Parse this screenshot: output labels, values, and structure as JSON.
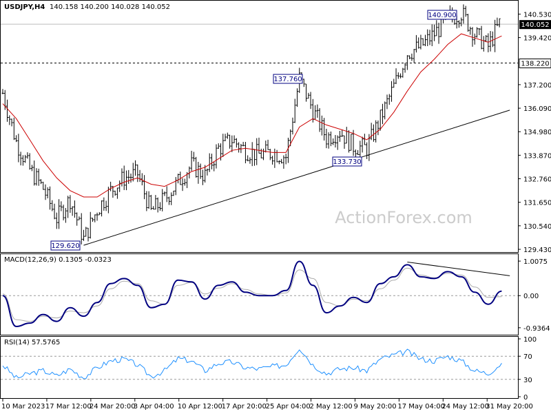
{
  "header": {
    "symbol": "USDJPY,H4",
    "ohlc": "140.158 140.200 140.028 140.052"
  },
  "watermark": "ActionForex.com",
  "price_axis": {
    "ticks": [
      "140.530",
      "139.420",
      "138.220",
      "137.200",
      "136.090",
      "134.980",
      "133.870",
      "132.760",
      "131.650",
      "130.540",
      "129.430"
    ],
    "current_price": "140.052",
    "level_line": "138.220"
  },
  "annotations": {
    "high1": "140.900",
    "high2": "137.760",
    "low1": "133.730",
    "low2": "129.620"
  },
  "macd": {
    "label": "MACD(12,26,9) 0.1305 -0.0323",
    "ticks": [
      "1.0075",
      "0.00",
      "-0.9364"
    ]
  },
  "rsi": {
    "label": "RSI(14) 57.5765",
    "ticks": [
      "100",
      "70",
      "30",
      "0"
    ]
  },
  "time_axis": [
    "10 Mar 2023",
    "17 Mar 12:00",
    "24 Mar 20:00",
    "3 Apr 04:00",
    "10 Apr 12:00",
    "17 Apr 20:00",
    "25 Apr 04:00",
    "2 May 12:00",
    "9 May 20:00",
    "17 May 04:00",
    "24 May 12:00",
    "31 May 20:00"
  ],
  "colors": {
    "candles": "#000000",
    "ma": "#cc0000",
    "macd_main": "#000080",
    "macd_signal": "#aaaaaa",
    "rsi": "#1e90ff",
    "axis_box": "#000000"
  },
  "chart_data": [
    {
      "type": "candlestick",
      "title": "USDJPY,H4",
      "ylim": [
        129.43,
        141.0
      ],
      "x": [
        0,
        20,
        40,
        60,
        80,
        100,
        120,
        140,
        160,
        180,
        200,
        220,
        240,
        260,
        280,
        300,
        320,
        340,
        360,
        380,
        400,
        420,
        440,
        460,
        480,
        500,
        520,
        540,
        560,
        580,
        600,
        620,
        640,
        660,
        680,
        700,
        720,
        740
      ],
      "series": [
        {
          "name": "close",
          "values": [
            136.8,
            134.5,
            133.2,
            132.3,
            130.9,
            131.8,
            129.9,
            131.3,
            132.2,
            132.8,
            133.0,
            131.2,
            131.8,
            132.6,
            133.4,
            132.9,
            134.2,
            134.6,
            134.1,
            133.9,
            134.0,
            133.8,
            137.5,
            136.0,
            134.7,
            135.0,
            134.3,
            134.2,
            135.6,
            137.1,
            138.7,
            139.0,
            139.6,
            140.3,
            140.6,
            139.6,
            139.0,
            140.3
          ]
        },
        {
          "name": "MA",
          "values": [
            136.3,
            135.6,
            134.6,
            133.6,
            132.8,
            132.2,
            131.9,
            131.9,
            132.3,
            132.6,
            132.8,
            132.5,
            132.4,
            132.7,
            133.1,
            133.3,
            133.7,
            134.1,
            134.2,
            134.1,
            134.0,
            134.0,
            135.2,
            135.6,
            135.3,
            135.1,
            134.9,
            134.6,
            135.1,
            135.9,
            136.9,
            137.8,
            138.4,
            139.1,
            139.6,
            139.4,
            139.2,
            139.5
          ]
        }
      ],
      "trendline": {
        "from": [
          120,
          129.62
        ],
        "to": [
          752,
          136.0
        ]
      },
      "hline": 138.22
    },
    {
      "type": "line",
      "title": "MACD(12,26,9) 0.1305 -0.0323",
      "ylim": [
        -1.1,
        1.15
      ],
      "x": [
        0,
        20,
        40,
        60,
        80,
        100,
        120,
        140,
        160,
        180,
        200,
        220,
        240,
        260,
        280,
        300,
        320,
        340,
        360,
        380,
        400,
        420,
        440,
        460,
        480,
        500,
        520,
        540,
        560,
        580,
        600,
        620,
        640,
        660,
        680,
        700,
        720,
        740
      ],
      "series": [
        {
          "name": "0.1305",
          "values": [
            0.0,
            -0.9,
            -0.8,
            -0.55,
            -0.75,
            -0.35,
            -0.6,
            -0.2,
            0.35,
            0.5,
            0.3,
            -0.35,
            -0.25,
            0.45,
            0.4,
            -0.1,
            0.3,
            0.4,
            0.1,
            0.0,
            0.0,
            0.15,
            1.0,
            0.3,
            -0.5,
            -0.3,
            -0.05,
            -0.2,
            0.35,
            0.55,
            0.9,
            0.55,
            0.5,
            0.7,
            0.55,
            0.1,
            -0.25,
            0.13
          ]
        },
        {
          "name": "-0.0323",
          "values": [
            0.05,
            -0.7,
            -0.75,
            -0.6,
            -0.65,
            -0.45,
            -0.5,
            -0.3,
            0.2,
            0.42,
            0.35,
            -0.15,
            -0.25,
            0.3,
            0.38,
            0.05,
            0.22,
            0.35,
            0.18,
            0.05,
            0.0,
            0.08,
            0.75,
            0.5,
            -0.2,
            -0.3,
            -0.1,
            -0.15,
            0.2,
            0.45,
            0.8,
            0.6,
            0.52,
            0.65,
            0.6,
            0.25,
            -0.05,
            -0.03
          ]
        }
      ],
      "trendline": {
        "from": [
          600,
          0.98
        ],
        "to": [
          752,
          0.58
        ]
      }
    },
    {
      "type": "line",
      "title": "RSI(14) 57.5765",
      "ylim": [
        0,
        100
      ],
      "x": [
        0,
        20,
        40,
        60,
        80,
        100,
        120,
        140,
        160,
        180,
        200,
        220,
        240,
        260,
        280,
        300,
        320,
        340,
        360,
        380,
        400,
        420,
        440,
        460,
        480,
        500,
        520,
        540,
        560,
        580,
        600,
        620,
        640,
        660,
        680,
        700,
        720,
        740
      ],
      "series": [
        {
          "name": "RSI(14)",
          "values": [
            55,
            32,
            40,
            45,
            36,
            48,
            33,
            50,
            62,
            65,
            55,
            35,
            45,
            66,
            62,
            45,
            58,
            60,
            50,
            48,
            52,
            55,
            85,
            55,
            40,
            48,
            50,
            45,
            65,
            72,
            78,
            65,
            62,
            70,
            62,
            45,
            40,
            58
          ]
        }
      ],
      "hlines": [
        70,
        30
      ]
    }
  ]
}
